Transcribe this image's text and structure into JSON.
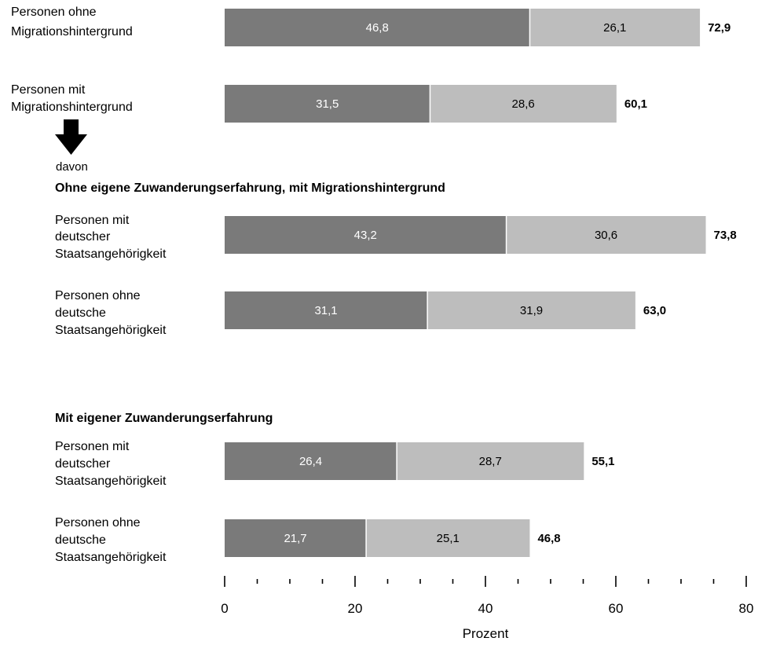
{
  "chart_data": {
    "type": "bar",
    "orientation": "horizontal",
    "stacked": true,
    "xlabel": "Prozent",
    "xlim": [
      0,
      80
    ],
    "x_ticks": [
      "0",
      "20",
      "40",
      "60",
      "80"
    ],
    "colors": {
      "segment_1": "#7a7a7a",
      "segment_2": "#bdbdbd"
    },
    "annotations": {
      "davon": "davon",
      "section_1": "Ohne eigene Zuwanderungserfahrung, mit Migrationshintergrund",
      "section_2": "Mit eigener Zuwanderungserfahrung"
    },
    "rows": [
      {
        "label": [
          "Personen ohne",
          "Migrationshintergrund"
        ],
        "seg1": 46.8,
        "seg1_label": "46,8",
        "seg2": 26.1,
        "seg2_label": "26,1",
        "total_label": "72,9"
      },
      {
        "label": [
          "Personen mit",
          "Migrationshintergrund"
        ],
        "seg1": 31.5,
        "seg1_label": "31,5",
        "seg2": 28.6,
        "seg2_label": "28,6",
        "total_label": "60,1"
      },
      {
        "label": [
          "Personen mit",
          "deutscher",
          "Staatsangehörigkeit"
        ],
        "seg1": 43.2,
        "seg1_label": "43,2",
        "seg2": 30.6,
        "seg2_label": "30,6",
        "total_label": "73,8"
      },
      {
        "label": [
          "Personen ohne",
          "deutsche",
          "Staatsangehörigkeit"
        ],
        "seg1": 31.1,
        "seg1_label": "31,1",
        "seg2": 31.9,
        "seg2_label": "31,9",
        "total_label": "63,0"
      },
      {
        "label": [
          "Personen mit",
          "deutscher",
          "Staatsangehörigkeit"
        ],
        "seg1": 26.4,
        "seg1_label": "26,4",
        "seg2": 28.7,
        "seg2_label": "28,7",
        "total_label": "55,1"
      },
      {
        "label": [
          "Personen ohne",
          "deutsche",
          "Staatsangehörigkeit"
        ],
        "seg1": 21.7,
        "seg1_label": "21,7",
        "seg2": 25.1,
        "seg2_label": "25,1",
        "total_label": "46,8"
      }
    ]
  }
}
